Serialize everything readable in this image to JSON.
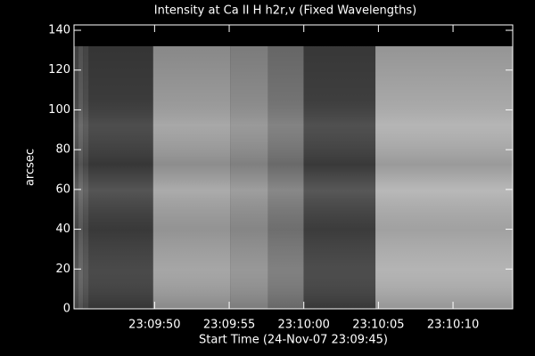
{
  "chart_data": {
    "type": "heatmap",
    "title": "Intensity at Ca II H h2r,v (Fixed Wavelengths)",
    "x_label": "Start Time (24-Nov-07 23:09:45)",
    "y_label": "arcsec",
    "xlim": [
      -0.4,
      29.0
    ],
    "ylim": [
      0,
      142.7
    ],
    "image_ylim": [
      0,
      132
    ],
    "xticks": [
      {
        "value": 5,
        "label": "23:09:50"
      },
      {
        "value": 10,
        "label": "23:09:55"
      },
      {
        "value": 15,
        "label": "23:10:00"
      },
      {
        "value": 20,
        "label": "23:10:05"
      },
      {
        "value": 25,
        "label": "23:10:10"
      }
    ],
    "yticks": [
      0,
      20,
      40,
      60,
      80,
      100,
      120,
      140
    ],
    "x_edges": [
      -0.4,
      -0.1,
      0.2,
      0.6,
      4.9,
      10.1,
      12.6,
      15.0,
      19.8,
      29.0
    ],
    "intensity": [
      75,
      95,
      80,
      62,
      160,
      145,
      120,
      65,
      175
    ]
  }
}
